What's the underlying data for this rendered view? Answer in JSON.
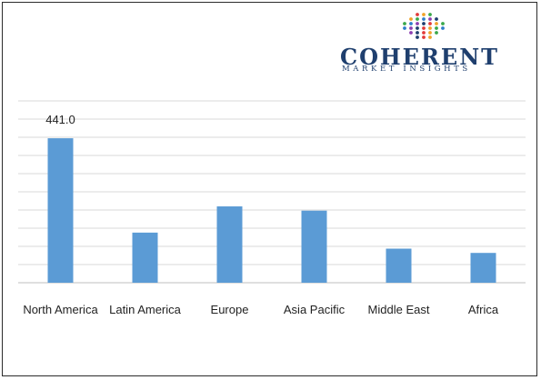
{
  "logo": {
    "brand": "COHERENT",
    "tagline": "MARKET INSIGHTS",
    "brand_color": "#1f3f6e"
  },
  "chart_data": {
    "type": "bar",
    "categories": [
      "North America",
      "Latin America",
      "Europe",
      "Asia Pacific",
      "Middle East",
      "Africa"
    ],
    "values": [
      441.0,
      153,
      233,
      220,
      104,
      91
    ],
    "data_labels": [
      "441.0",
      "",
      "",
      "",
      "",
      ""
    ],
    "ylim": [
      0,
      555
    ],
    "gridline_step": 55.5,
    "grid": true,
    "legend": "none",
    "bar_color": "#5b9bd5"
  }
}
